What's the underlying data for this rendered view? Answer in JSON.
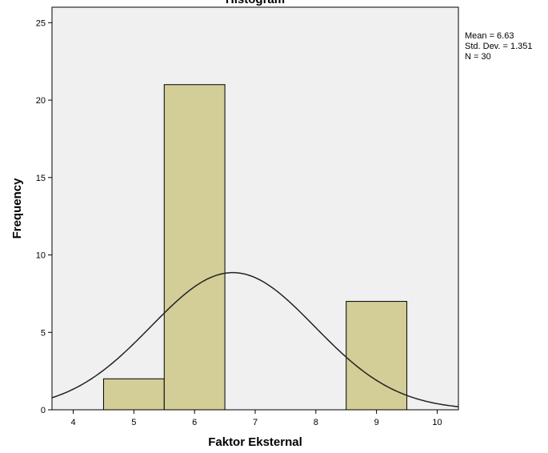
{
  "chart_data": {
    "type": "histogram",
    "title": "Histogram",
    "xlabel": "Faktor Eksternal",
    "ylabel": "Frequency",
    "xlim": [
      3.65,
      10.35
    ],
    "ylim": [
      0,
      26
    ],
    "x_ticks": [
      4,
      5,
      6,
      7,
      8,
      9,
      10
    ],
    "y_ticks": [
      0,
      5,
      10,
      15,
      20,
      25
    ],
    "bins": [
      {
        "from": 4.5,
        "to": 5.5,
        "count": 2
      },
      {
        "from": 5.5,
        "to": 6.5,
        "count": 21
      },
      {
        "from": 8.5,
        "to": 9.5,
        "count": 7
      }
    ],
    "stats": {
      "mean_label": "Mean = 6.63",
      "sd_label": "Std. Dev. = 1.351",
      "n_label": "N = 30"
    },
    "normal_curve": {
      "mean": 6.63,
      "sd": 1.351,
      "n": 30,
      "bin_width": 1
    },
    "colors": {
      "bar": "#d3ce98",
      "plot_bg": "#f0f0f0",
      "curve": "#222222",
      "border": "#000000"
    },
    "grid": false,
    "legend": "top-right"
  }
}
